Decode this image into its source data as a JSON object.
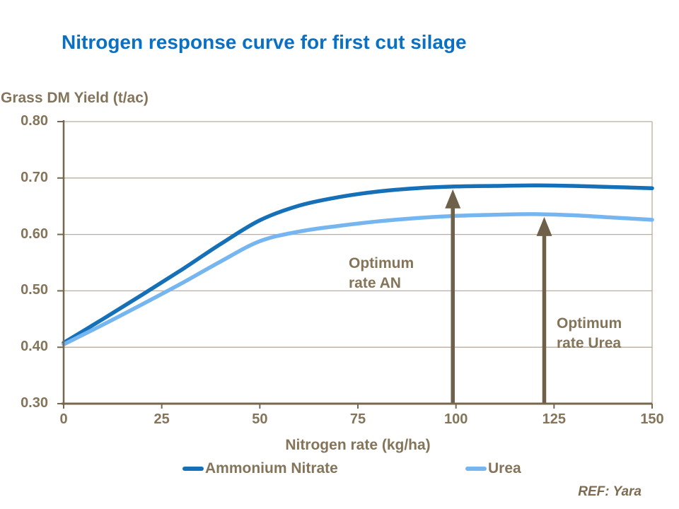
{
  "page": {
    "background": "#ffffff",
    "title": "Nitrogen response curve for first cut silage",
    "ref_text": "REF: Yara"
  },
  "colors": {
    "title_blue": "#0b70c2",
    "text_brown": "#84745a",
    "axis_dark": "#77674e",
    "gridline": "#bcae9c",
    "arrow": "#6f604a",
    "series_an": "#1570b8",
    "series_urea": "#76b6f0"
  },
  "chart_data": {
    "type": "line",
    "title": "Nitrogen response curve for first cut silage",
    "ylabel": "Grass DM Yield (t/ac)",
    "xlabel": "Nitrogen rate (kg/ha)",
    "xlim": [
      0,
      150
    ],
    "ylim": [
      0.3,
      0.8
    ],
    "xticks": [
      0,
      25,
      50,
      75,
      100,
      125,
      150
    ],
    "ytick_labels": [
      "0.30",
      "0.40",
      "0.50",
      "0.60",
      "0.70",
      "0.80"
    ],
    "grid": "horizontal",
    "legend_position": "bottom",
    "x": [
      0,
      10,
      20,
      30,
      40,
      50,
      60,
      70,
      80,
      90,
      100,
      110,
      120,
      130,
      140,
      150
    ],
    "series": [
      {
        "name": "Ammonium Nitrate",
        "color": "#1570b8",
        "values": [
          0.408,
          0.45,
          0.493,
          0.537,
          0.583,
          0.625,
          0.651,
          0.666,
          0.676,
          0.682,
          0.685,
          0.686,
          0.687,
          0.686,
          0.684,
          0.682
        ]
      },
      {
        "name": "Urea",
        "color": "#76b6f0",
        "values": [
          0.405,
          0.44,
          0.476,
          0.513,
          0.552,
          0.588,
          0.605,
          0.615,
          0.623,
          0.629,
          0.633,
          0.635,
          0.636,
          0.634,
          0.63,
          0.626
        ]
      }
    ],
    "annotations": [
      {
        "label": "Optimum rate AN",
        "label_lines": [
          "Optimum",
          "rate AN"
        ],
        "arrow_x": 99.2,
        "arrow_tip_y": 0.68,
        "arrow_base_y": 0.3
      },
      {
        "label": "Optimum rate Urea",
        "label_lines": [
          "Optimum",
          "rate Urea"
        ],
        "arrow_x": 122.5,
        "arrow_tip_y": 0.631,
        "arrow_base_y": 0.3
      }
    ]
  }
}
